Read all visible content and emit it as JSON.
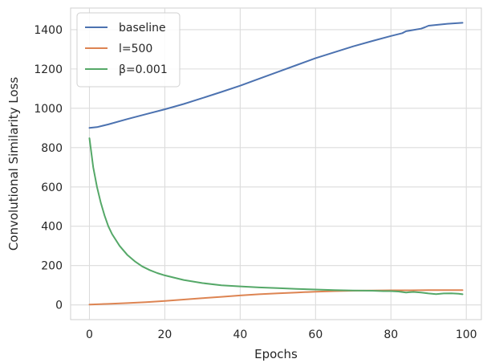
{
  "chart_data": {
    "type": "line",
    "title": "",
    "xlabel": "Epochs",
    "ylabel": "Convolutional Similarity Loss",
    "xlim": [
      -5,
      104
    ],
    "ylim": [
      -75,
      1510
    ],
    "xticks": [
      0,
      20,
      40,
      60,
      80,
      100
    ],
    "yticks": [
      0,
      200,
      400,
      600,
      800,
      1000,
      1200,
      1400
    ],
    "grid": true,
    "legend_position": "upper-left",
    "series": [
      {
        "name": "baseline",
        "color": "#4c72b0",
        "x": [
          0,
          2,
          5,
          10,
          15,
          20,
          25,
          30,
          35,
          40,
          45,
          50,
          55,
          60,
          65,
          70,
          75,
          80,
          83,
          84,
          88,
          89,
          90,
          95,
          99
        ],
        "y": [
          900,
          904,
          918,
          945,
          970,
          995,
          1022,
          1052,
          1083,
          1115,
          1150,
          1185,
          1220,
          1255,
          1285,
          1315,
          1342,
          1368,
          1382,
          1392,
          1405,
          1412,
          1420,
          1430,
          1435
        ]
      },
      {
        "name": "l=500",
        "color": "#dd8452",
        "x": [
          0,
          5,
          10,
          15,
          20,
          25,
          30,
          35,
          40,
          45,
          50,
          55,
          60,
          65,
          70,
          75,
          80,
          85,
          90,
          95,
          99
        ],
        "y": [
          2,
          5,
          9,
          14,
          20,
          27,
          34,
          41,
          48,
          54,
          59,
          63,
          67,
          70,
          72,
          73,
          74,
          74,
          75,
          75,
          75
        ]
      },
      {
        "name": "β=0.001",
        "color": "#55a868",
        "x": [
          0,
          1,
          2,
          3,
          4,
          5,
          6,
          8,
          10,
          12,
          14,
          16,
          18,
          20,
          25,
          30,
          35,
          40,
          45,
          50,
          55,
          60,
          65,
          70,
          75,
          78,
          80,
          82,
          84,
          86,
          88,
          90,
          92,
          94,
          96,
          98,
          99
        ],
        "y": [
          848,
          700,
          600,
          520,
          455,
          400,
          360,
          300,
          255,
          222,
          196,
          177,
          162,
          150,
          127,
          111,
          100,
          94,
          89,
          85,
          81,
          78,
          75,
          73,
          72,
          70,
          70,
          68,
          63,
          66,
          63,
          58,
          55,
          58,
          59,
          57,
          54
        ]
      }
    ]
  }
}
